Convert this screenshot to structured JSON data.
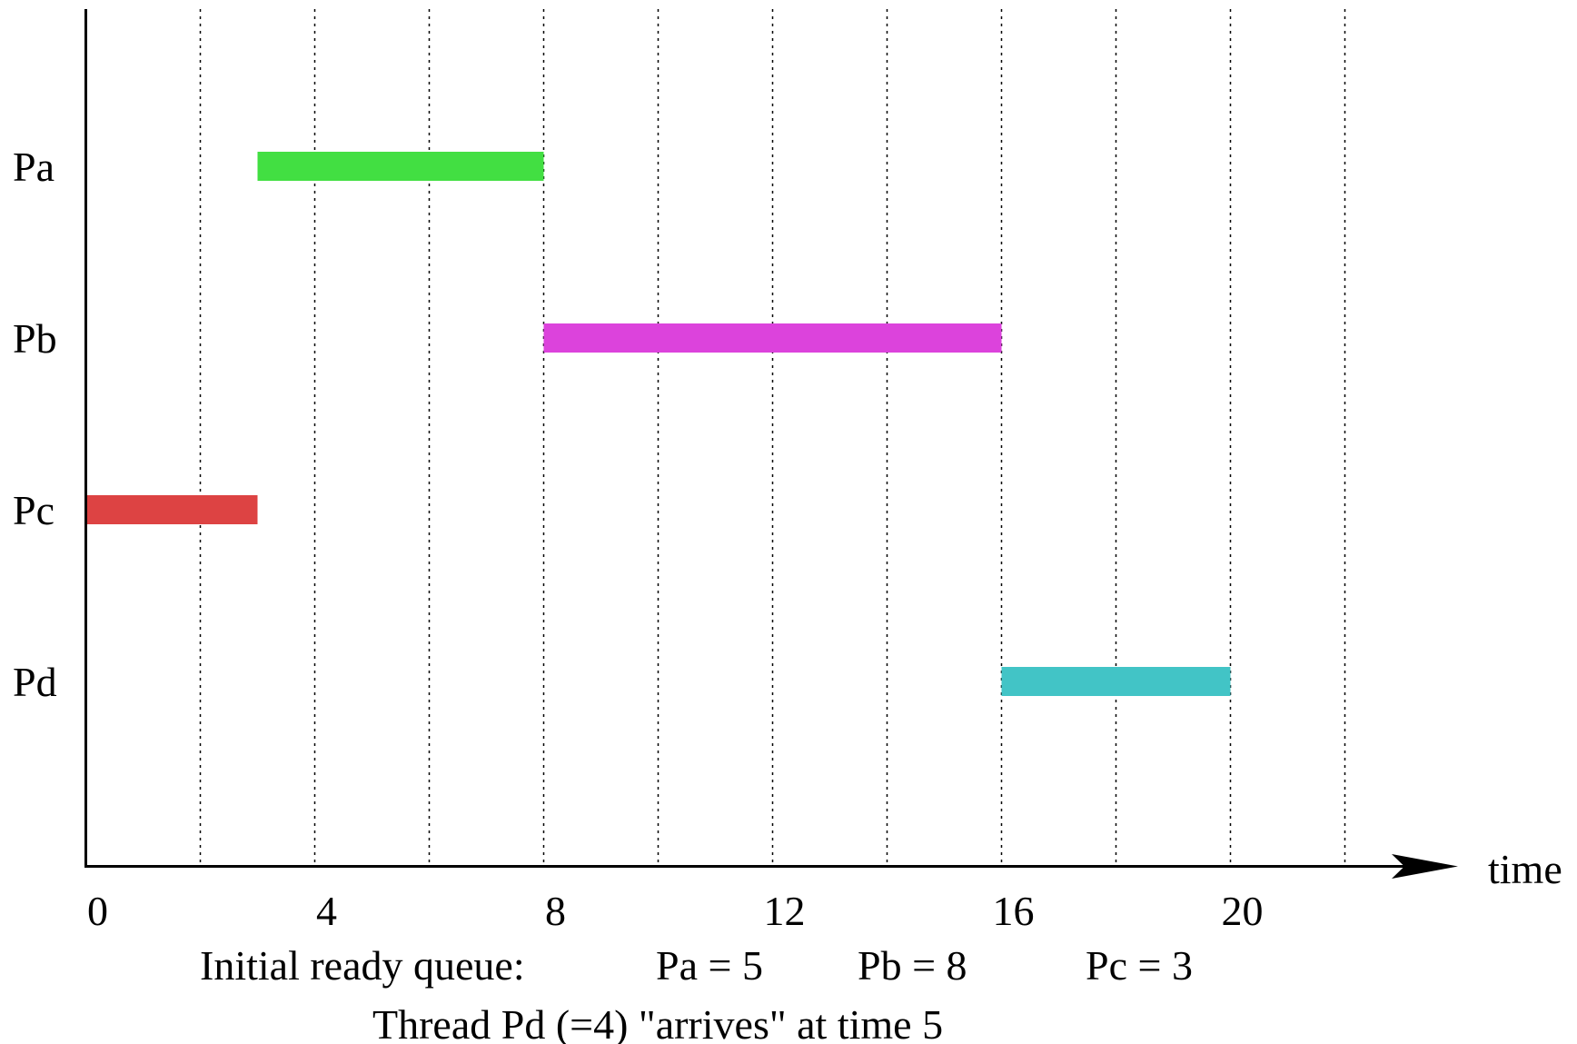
{
  "chart_data": {
    "type": "gantt",
    "xlabel": "time",
    "xlim": [
      0,
      22
    ],
    "x_ticks": [
      0,
      4,
      8,
      12,
      16,
      20
    ],
    "x_tick_labels": [
      "0",
      "4",
      "8",
      "12",
      "16",
      "20"
    ],
    "gridlines": [
      2,
      4,
      6,
      8,
      10,
      12,
      14,
      16,
      18,
      20,
      22
    ],
    "grid": "vertical dotted",
    "rows": [
      "Pa",
      "Pb",
      "Pc",
      "Pd"
    ],
    "bars": [
      {
        "row": "Pa",
        "start": 3,
        "end": 8,
        "color": "#42df42"
      },
      {
        "row": "Pb",
        "start": 8,
        "end": 16,
        "color": "#dc43dc"
      },
      {
        "row": "Pc",
        "start": 0,
        "end": 3,
        "color": "#dd4343"
      },
      {
        "row": "Pd",
        "start": 16,
        "end": 20,
        "color": "#42c4c6"
      }
    ]
  },
  "notes": {
    "queue_label": "Initial ready queue:",
    "queue_items": [
      "Pa = 5",
      "Pb = 8",
      "Pc = 3"
    ],
    "arrival_note": "Thread Pd (=4) \"arrives\" at time 5"
  }
}
